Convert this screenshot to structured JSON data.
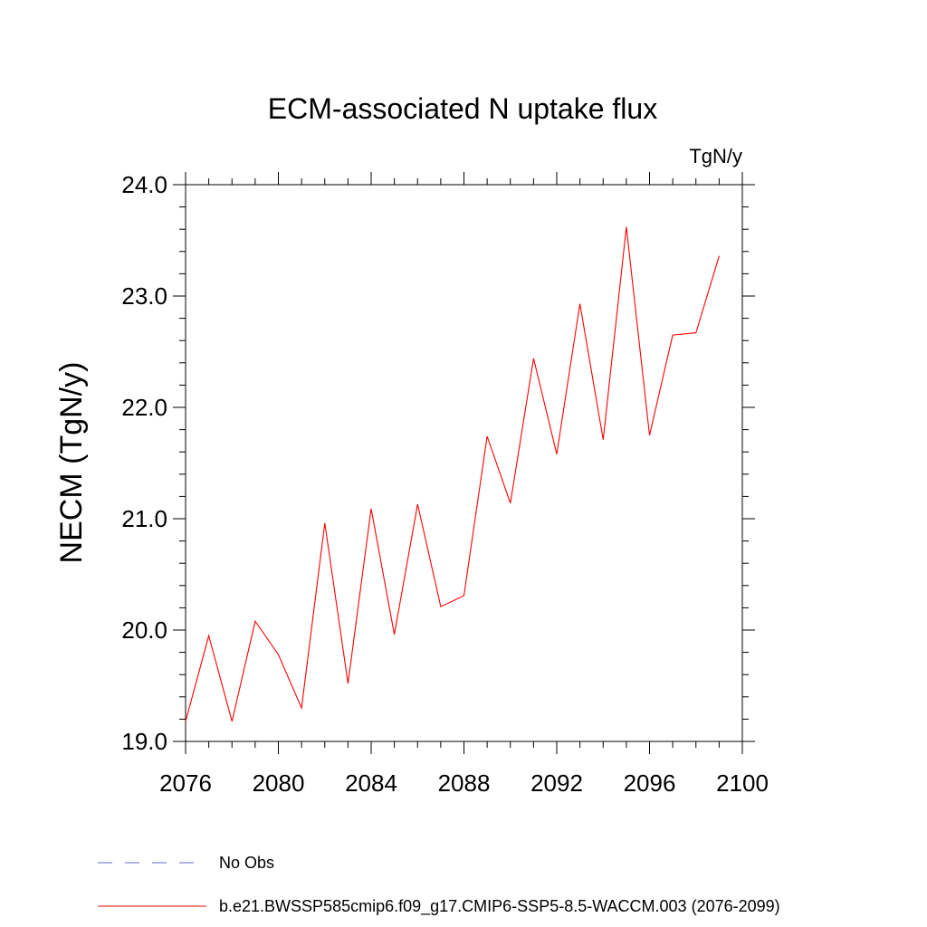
{
  "chart_data": {
    "type": "line",
    "title": "ECM-associated N uptake flux",
    "units": "TgN/y",
    "ylabel": "NECM  (TgN/y)",
    "xlabel": "",
    "xlim": [
      2076,
      2100
    ],
    "ylim": [
      19.0,
      24.0
    ],
    "x_ticks": [
      2076,
      2080,
      2084,
      2088,
      2092,
      2096,
      2100
    ],
    "y_ticks": [
      19.0,
      20.0,
      21.0,
      22.0,
      23.0,
      24.0
    ],
    "x_tick_labels": [
      "2076",
      "2080",
      "2084",
      "2088",
      "2092",
      "2096",
      "2100"
    ],
    "y_tick_labels": [
      "19.0",
      "20.0",
      "21.0",
      "22.0",
      "23.0",
      "24.0"
    ],
    "grid": false,
    "legend_position": "bottom",
    "series": [
      {
        "name": "b.e21.BWSSP585cmip6.f09_g17.CMIP6-SSP5-8.5-WACCM.003 (2076-2099)",
        "color": "#ff0000",
        "style": "solid",
        "x": [
          2076,
          2077,
          2078,
          2079,
          2080,
          2081,
          2082,
          2083,
          2084,
          2085,
          2086,
          2087,
          2088,
          2089,
          2090,
          2091,
          2092,
          2093,
          2094,
          2095,
          2096,
          2097,
          2098,
          2099
        ],
        "y": [
          19.18,
          19.95,
          19.18,
          20.08,
          19.78,
          19.3,
          20.96,
          19.52,
          21.09,
          19.96,
          21.13,
          20.21,
          20.31,
          21.74,
          21.14,
          22.44,
          21.58,
          22.93,
          21.71,
          23.62,
          21.75,
          22.65,
          22.67,
          23.36
        ]
      }
    ],
    "legend": [
      {
        "label": "No Obs",
        "color": "#6a6acd",
        "style": "dashed"
      },
      {
        "label": "b.e21.BWSSP585cmip6.f09_g17.CMIP6-SSP5-8.5-WACCM.003 (2076-2099)",
        "color": "#ff0000",
        "style": "solid"
      }
    ]
  }
}
